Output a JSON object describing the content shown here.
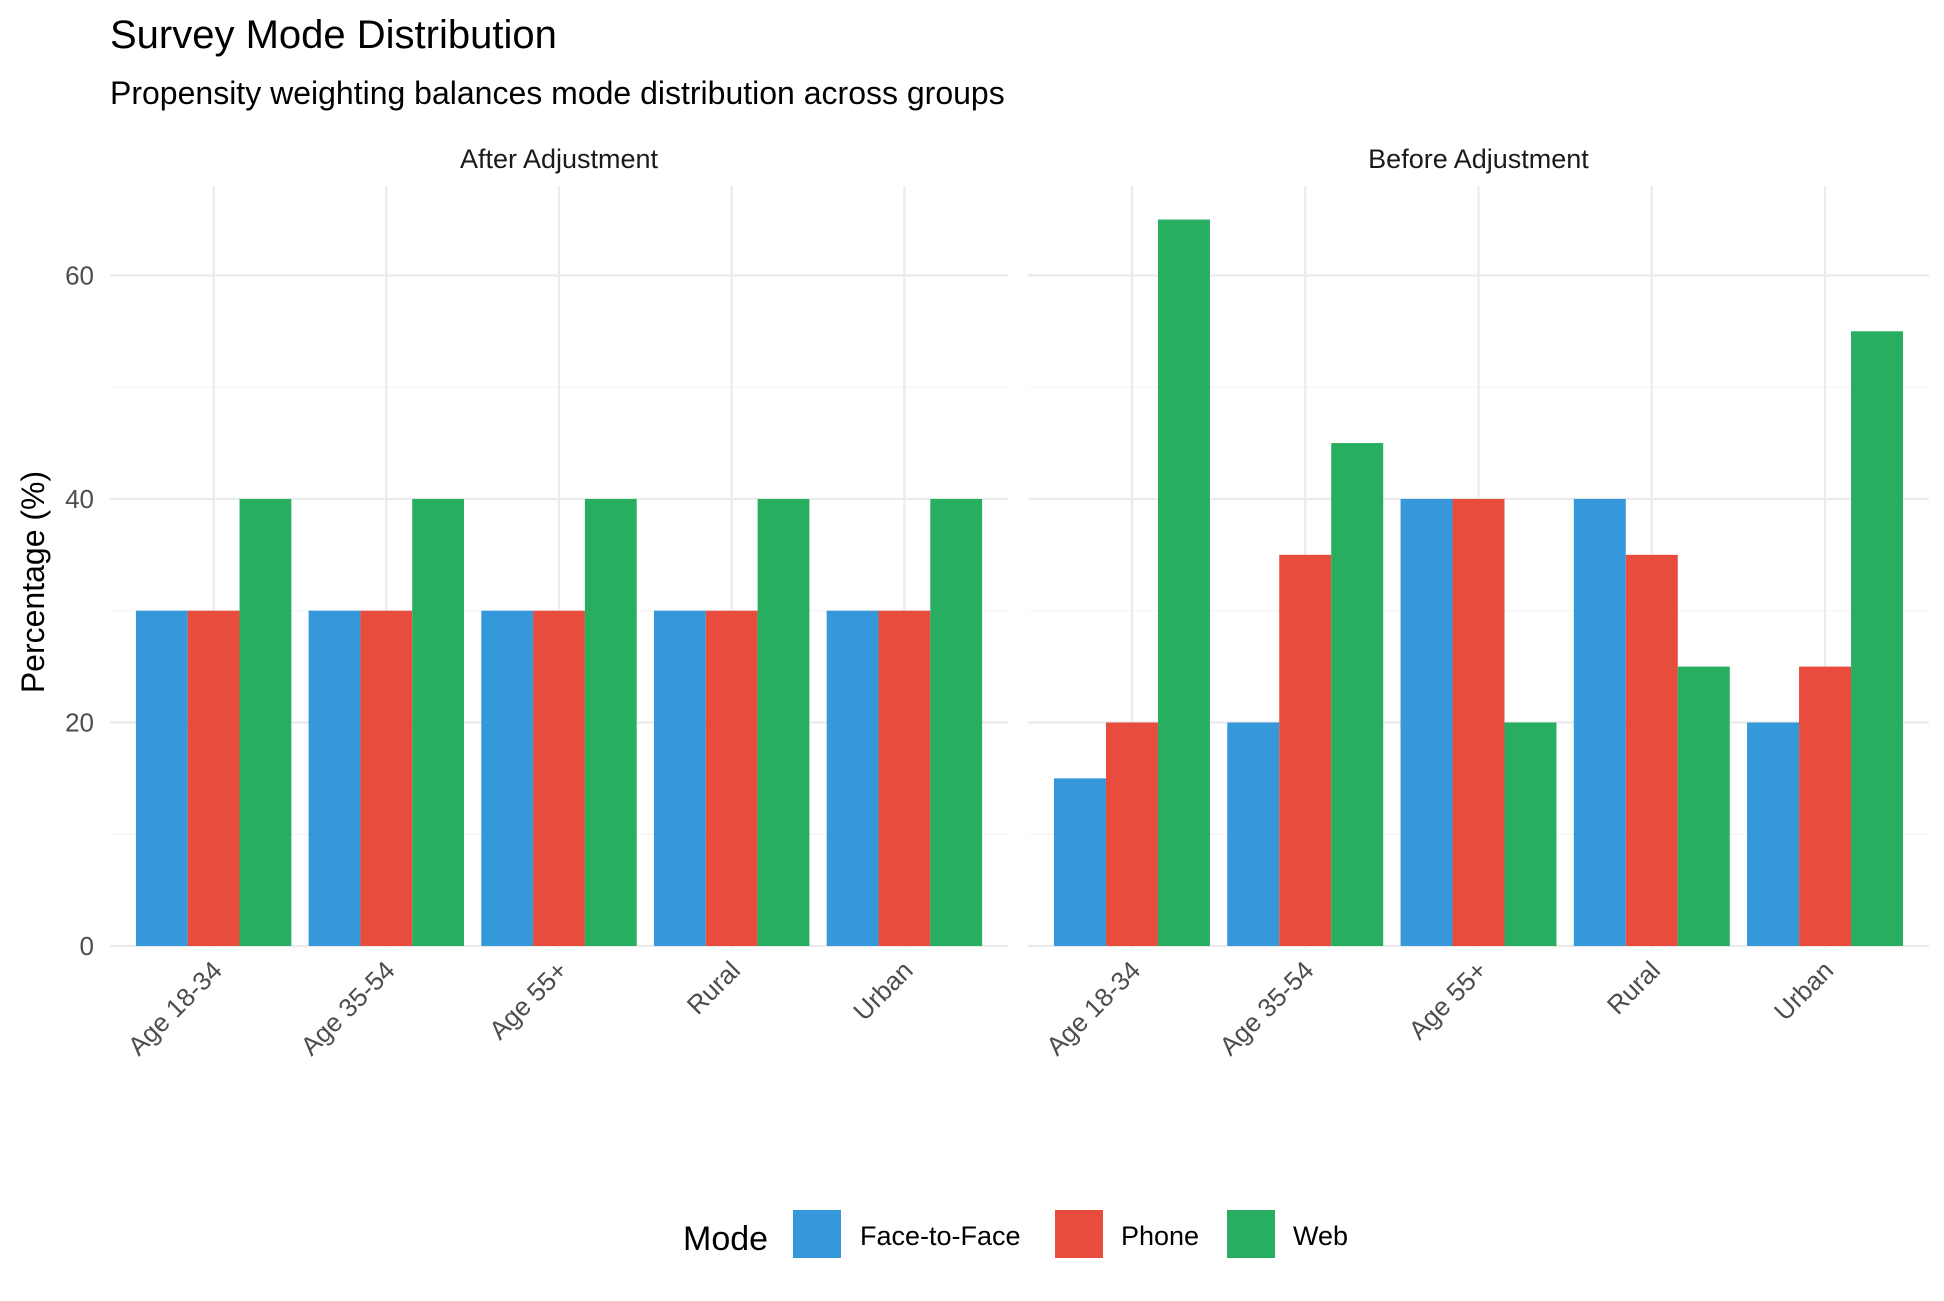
{
  "chart_data": {
    "type": "bar",
    "title": "Survey Mode Distribution",
    "subtitle": "Propensity weighting balances mode distribution across groups",
    "xlabel": "",
    "ylabel": "Percentage (%)",
    "ylim": [
      0,
      68
    ],
    "yticks": [
      0,
      20,
      40,
      60
    ],
    "grid": true,
    "legend": {
      "title": "Mode",
      "position": "bottom"
    },
    "categories": [
      "Age 18-34",
      "Age 35-54",
      "Age 55+",
      "Rural",
      "Urban"
    ],
    "series_order": [
      "Face-to-Face",
      "Phone",
      "Web"
    ],
    "colors": {
      "Face-to-Face": "#3498db",
      "Phone": "#e74c3c",
      "Web": "#27ae60"
    },
    "panels": [
      {
        "label": "After Adjustment",
        "series": [
          {
            "name": "Face-to-Face",
            "values": [
              30,
              30,
              30,
              30,
              30
            ]
          },
          {
            "name": "Phone",
            "values": [
              30,
              30,
              30,
              30,
              30
            ]
          },
          {
            "name": "Web",
            "values": [
              40,
              40,
              40,
              40,
              40
            ]
          }
        ]
      },
      {
        "label": "Before Adjustment",
        "series": [
          {
            "name": "Face-to-Face",
            "values": [
              15,
              20,
              40,
              40,
              20
            ]
          },
          {
            "name": "Phone",
            "values": [
              20,
              35,
              40,
              35,
              25
            ]
          },
          {
            "name": "Web",
            "values": [
              65,
              45,
              20,
              25,
              55
            ]
          }
        ]
      }
    ]
  }
}
